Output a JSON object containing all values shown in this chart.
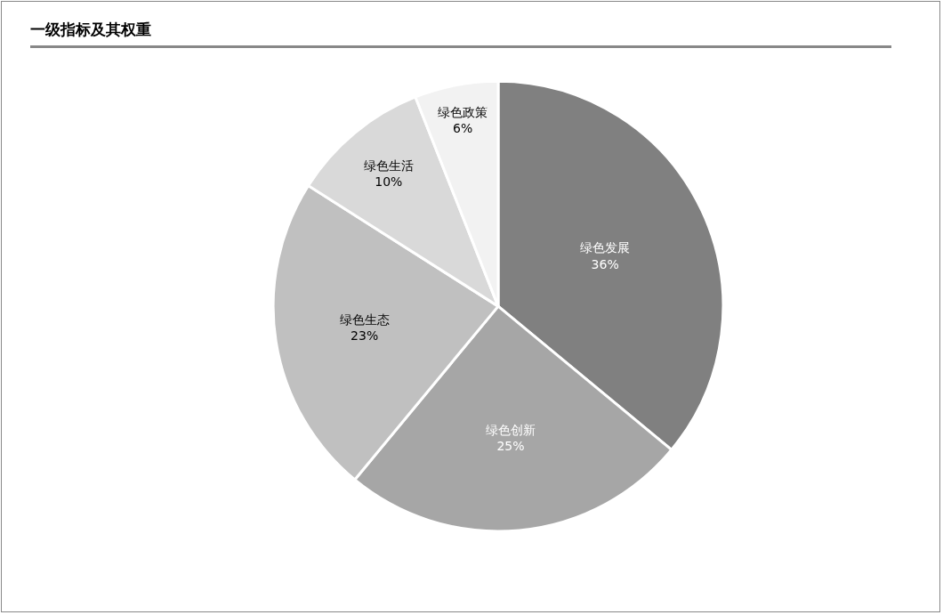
{
  "chart_data": {
    "type": "pie",
    "title": "一级指标及其权重",
    "categories": [
      "绿色发展",
      "绿色创新",
      "绿色生态",
      "绿色生活",
      "绿色政策"
    ],
    "values": [
      36,
      25,
      23,
      10,
      6
    ],
    "value_labels": [
      "36%",
      "25%",
      "23%",
      "10%",
      "6%"
    ],
    "colors": [
      "#808080",
      "#a6a6a6",
      "#c0c0c0",
      "#d9d9d9",
      "#f2f2f2"
    ],
    "legend": false
  }
}
